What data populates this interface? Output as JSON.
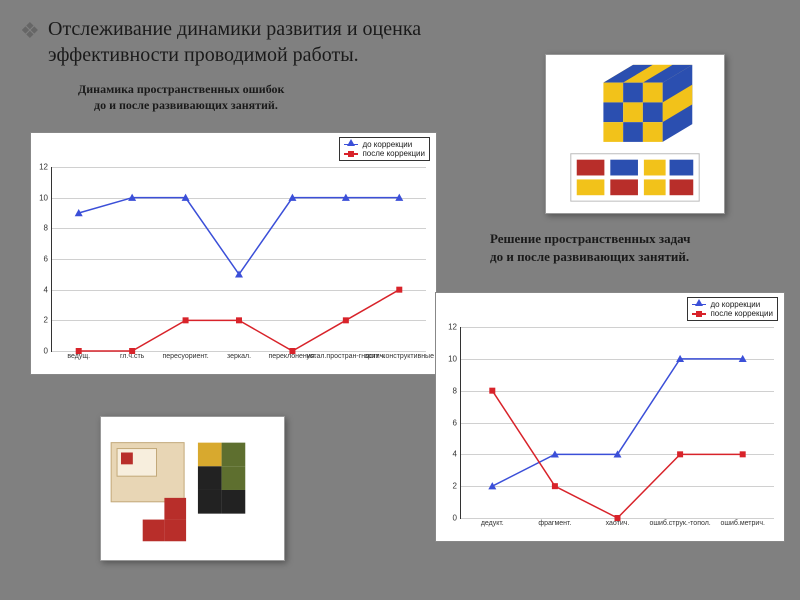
{
  "background_color": "#808080",
  "bullet_glyph": "❖",
  "title": "Отслеживание динамики развития и оценка эффективности проводимой работы.",
  "subtitle_left_line1": "Динамика  пространственных ошибок",
  "subtitle_left_line2": "до и после развивающих занятий.",
  "subtitle_right_line1": "Решение пространственных задач",
  "subtitle_right_line2": "до и после развивающих занятий.",
  "legend_before": "до коррекции",
  "legend_after": "после коррекции",
  "chart_left": {
    "type": "line",
    "background": "#ffffff",
    "grid_color": "#d0d0d0",
    "ylim": [
      0,
      12
    ],
    "ytick_step": 2,
    "categories": [
      "ведущ.",
      "гл.ч.сть",
      "пересуориент.",
      "зеркал.",
      "переклонения.",
      "устал.простран-гностич.",
      "зрит.-конструктивные"
    ],
    "series": [
      {
        "name": "before",
        "color": "#3b4fd8",
        "marker": "triangle",
        "values": [
          9,
          10,
          10,
          5,
          10,
          10,
          10
        ]
      },
      {
        "name": "after",
        "color": "#d8232a",
        "marker": "square",
        "values": [
          0,
          0,
          2,
          2,
          0,
          2,
          4
        ]
      }
    ],
    "line_width": 1.5,
    "marker_size": 6,
    "tick_fontsize": 8
  },
  "chart_right": {
    "type": "line",
    "background": "#ffffff",
    "grid_color": "#d0d0d0",
    "ylim": [
      0,
      12
    ],
    "ytick_step": 2,
    "categories": [
      "дедукт.",
      "фрагмент.",
      "хаотич.",
      "ошиб.струк.-топол.",
      "ошиб.метрич."
    ],
    "series": [
      {
        "name": "before",
        "color": "#3b4fd8",
        "marker": "triangle",
        "values": [
          2,
          4,
          4,
          10,
          10
        ]
      },
      {
        "name": "after",
        "color": "#d8232a",
        "marker": "square",
        "values": [
          8,
          2,
          0,
          4,
          4
        ]
      }
    ],
    "line_width": 1.5,
    "marker_size": 6,
    "tick_fontsize": 8
  },
  "cube_illustration": {
    "description": "Кубики Никитина — куб из сине-жёлтых кубиков и карточки с узорами",
    "colors": {
      "cube_blue": "#2b4fb0",
      "cube_yellow": "#f2c21a",
      "card_bg": "#ffffff",
      "card_border": "#aaaaaa"
    }
  },
  "box_illustration": {
    "description": "Кубики для всех — деревянная коробка и цветные блоки",
    "colors": {
      "wood": "#e8d6b5",
      "red": "#b82e2a",
      "green": "#5e6f2f",
      "black": "#222222",
      "yellow": "#d8a92e"
    }
  }
}
